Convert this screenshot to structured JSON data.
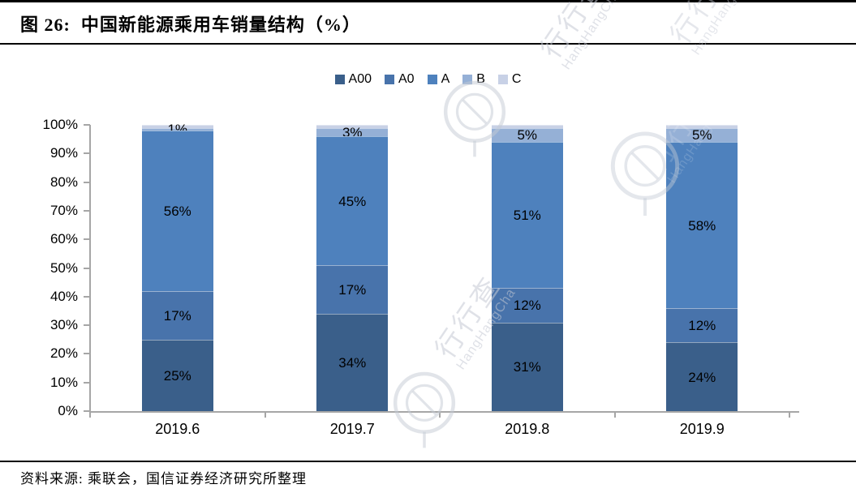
{
  "header": {
    "title": "图 26:  中国新能源乘用车销量结构（%）"
  },
  "footer": {
    "source": "资料来源: 乘联会，国信证券经济研究所整理"
  },
  "watermark": {
    "brand_cn": "行行查",
    "brand_en": "HangHangCha"
  },
  "colors": {
    "axis": "#a6a6a6",
    "text": "#000000"
  },
  "chart_data": {
    "type": "bar",
    "stacked": true,
    "title": "中国新能源乘用车销量结构（%）",
    "categories": [
      "2019.6",
      "2019.7",
      "2019.8",
      "2019.9"
    ],
    "series": [
      {
        "name": "A00",
        "color": "#3A5F8A",
        "values": [
          25,
          34,
          31,
          24
        ],
        "show_labels": true
      },
      {
        "name": "A0",
        "color": "#4873AB",
        "values": [
          17,
          17,
          12,
          12
        ],
        "show_labels": true
      },
      {
        "name": "A",
        "color": "#4E81BD",
        "values": [
          56,
          45,
          51,
          58
        ],
        "show_labels": true
      },
      {
        "name": "B",
        "color": "#95B0D6",
        "values": [
          1,
          3,
          5,
          5
        ],
        "show_labels": true
      },
      {
        "name": "C",
        "color": "#C8D1E6",
        "values": [
          1,
          1,
          1,
          1
        ],
        "show_labels": false
      }
    ],
    "label_format": "{v}%",
    "ylim": [
      0,
      100
    ],
    "y_tick_labels": [
      "0%",
      "10%",
      "20%",
      "30%",
      "40%",
      "50%",
      "60%",
      "70%",
      "80%",
      "90%",
      "100%"
    ],
    "legend_position": "top",
    "grid": false
  }
}
